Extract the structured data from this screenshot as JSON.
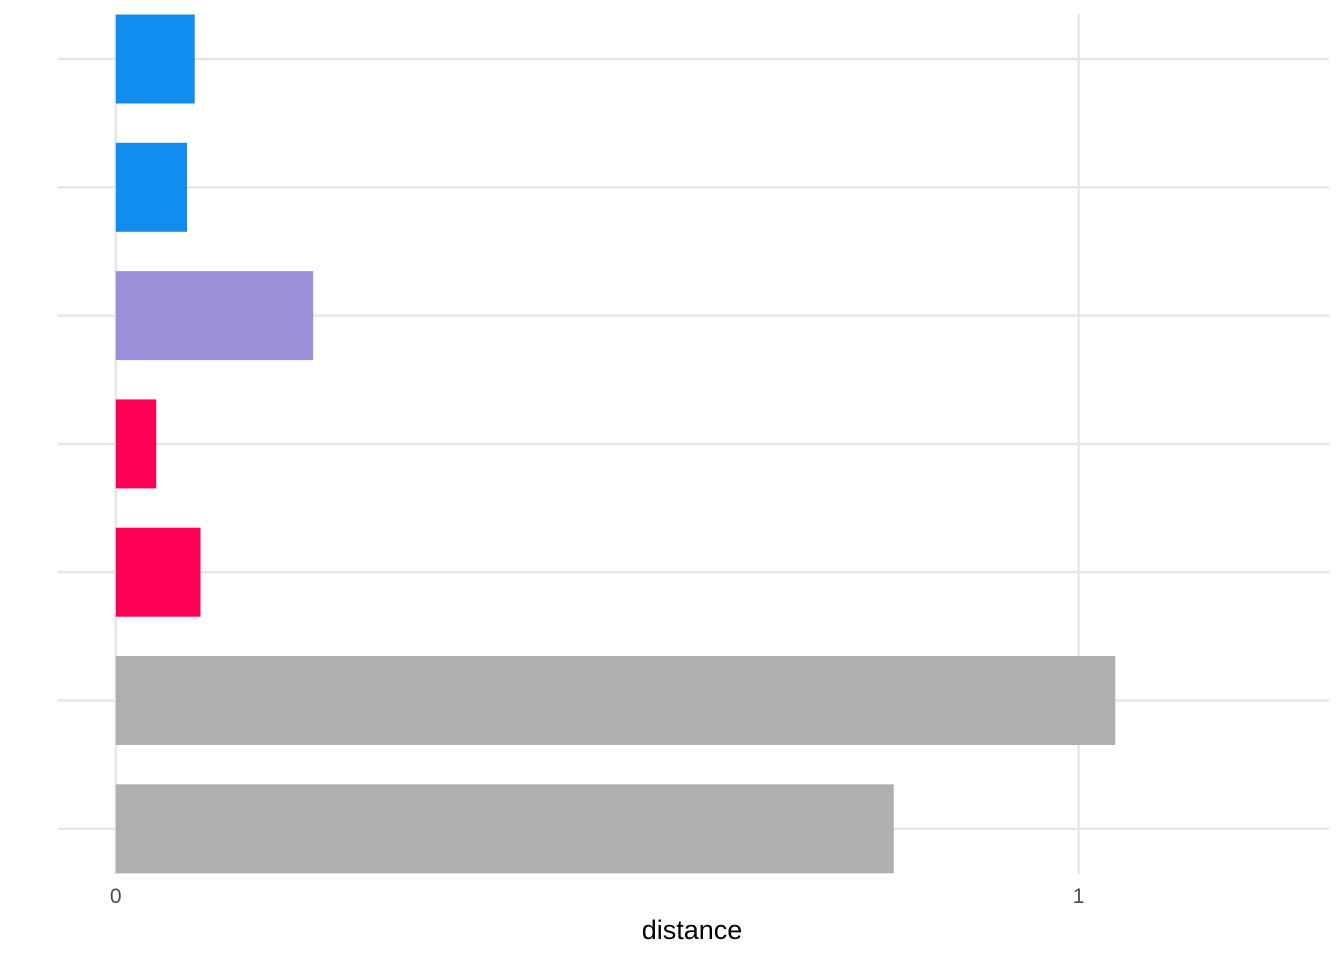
{
  "chart_data": {
    "type": "bar",
    "orientation": "horizontal",
    "xlabel": "distance",
    "ylabel": "",
    "xlim": [
      -0.06,
      1.26
    ],
    "x_ticks": [
      0,
      1
    ],
    "x_tick_labels": [
      "0",
      "1"
    ],
    "grid": true,
    "legend": "none",
    "bars": [
      {
        "value": 0.082,
        "color": "#118DF0"
      },
      {
        "value": 0.074,
        "color": "#118DF0"
      },
      {
        "value": 0.205,
        "color": "#9A8FD8"
      },
      {
        "value": 0.042,
        "color": "#FF0055"
      },
      {
        "value": 0.088,
        "color": "#FF0055"
      },
      {
        "value": 1.038,
        "color": "#AFAFAF"
      },
      {
        "value": 0.808,
        "color": "#AFAFAF"
      }
    ]
  }
}
